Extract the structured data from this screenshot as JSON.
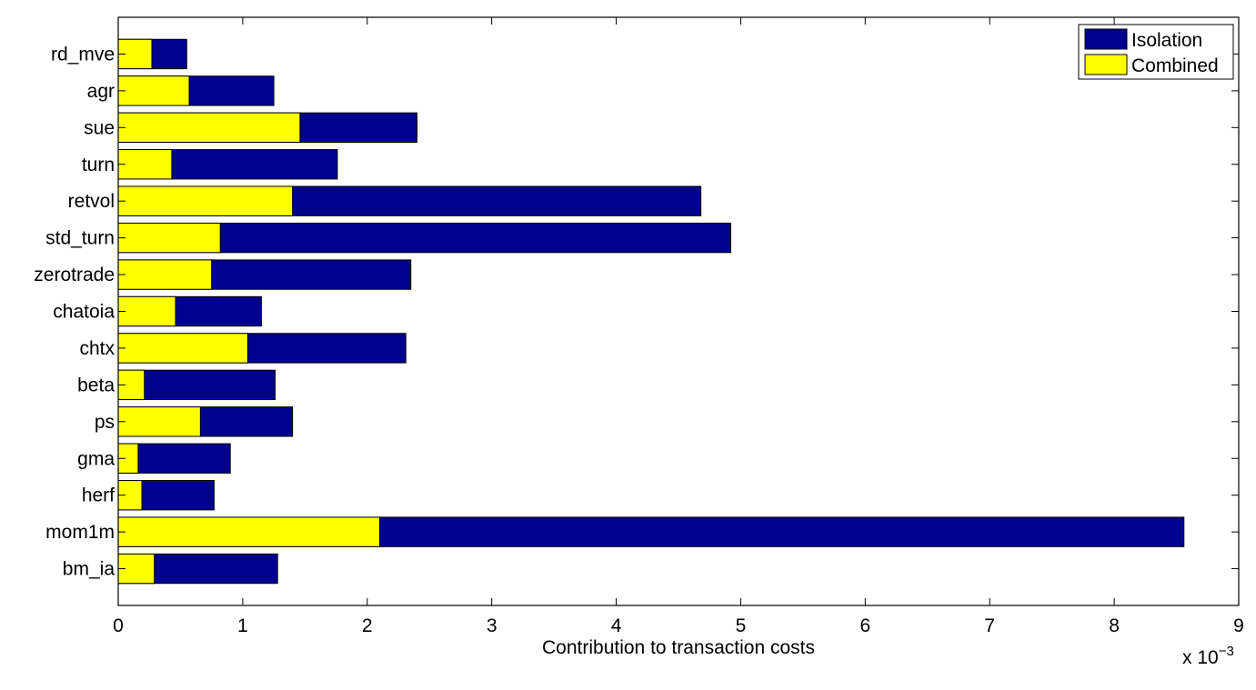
{
  "chart_data": {
    "type": "bar",
    "orientation": "horizontal",
    "stacked": "overlay",
    "xlabel": "Contribution to transaction costs",
    "x_multiplier_text": "x 10",
    "x_multiplier_exp": "−3",
    "xlim": [
      0,
      9
    ],
    "xticks": [
      0,
      1,
      2,
      3,
      4,
      5,
      6,
      7,
      8,
      9
    ],
    "categories": [
      "rd_mve",
      "agr",
      "sue",
      "turn",
      "retvol",
      "std_turn",
      "zerotrade",
      "chatoia",
      "chtx",
      "beta",
      "ps",
      "gma",
      "herf",
      "mom1m",
      "bm_ia"
    ],
    "series": [
      {
        "name": "Isolation",
        "color": "#00008f",
        "values": [
          0.55,
          1.25,
          2.4,
          1.76,
          4.68,
          4.92,
          2.35,
          1.15,
          2.31,
          1.26,
          1.4,
          0.9,
          0.77,
          8.56,
          1.28
        ]
      },
      {
        "name": "Combined",
        "color": "#ffff00",
        "values": [
          0.27,
          0.57,
          1.46,
          0.43,
          1.4,
          0.82,
          0.75,
          0.46,
          1.04,
          0.21,
          0.66,
          0.16,
          0.19,
          2.1,
          0.29
        ]
      }
    ],
    "legend_position": "top-right",
    "grid": false
  }
}
